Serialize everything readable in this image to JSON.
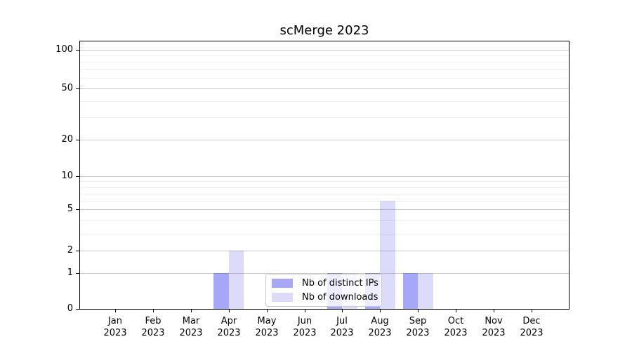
{
  "chart_data": {
    "type": "bar",
    "title": "scMerge 2023",
    "categories": [
      "Jan",
      "Feb",
      "Mar",
      "Apr",
      "May",
      "Jun",
      "Jul",
      "Aug",
      "Sep",
      "Oct",
      "Nov",
      "Dec"
    ],
    "category_year": "2023",
    "series": [
      {
        "name": "Nb of distinct IPs",
        "color": "#a7a7fa",
        "values": [
          0,
          0,
          0,
          1,
          0,
          0,
          1,
          1,
          1,
          0,
          0,
          0
        ]
      },
      {
        "name": "Nb of downloads",
        "color": "#dcdcfa",
        "values": [
          0,
          0,
          0,
          2,
          0,
          0,
          1,
          6,
          1,
          0,
          0,
          0
        ]
      }
    ],
    "yscale": "log1p",
    "yticks": [
      0,
      1,
      2,
      5,
      10,
      20,
      50,
      100
    ],
    "minor_yticks": [
      3,
      4,
      6,
      7,
      8,
      9,
      30,
      40,
      60,
      70,
      80,
      90
    ],
    "ylim": [
      0,
      110
    ],
    "xlabel": "",
    "ylabel": "",
    "grid": {
      "axis": "y",
      "major": true,
      "minor": true,
      "above_bars": true
    },
    "legend_position": "lower center inside"
  }
}
